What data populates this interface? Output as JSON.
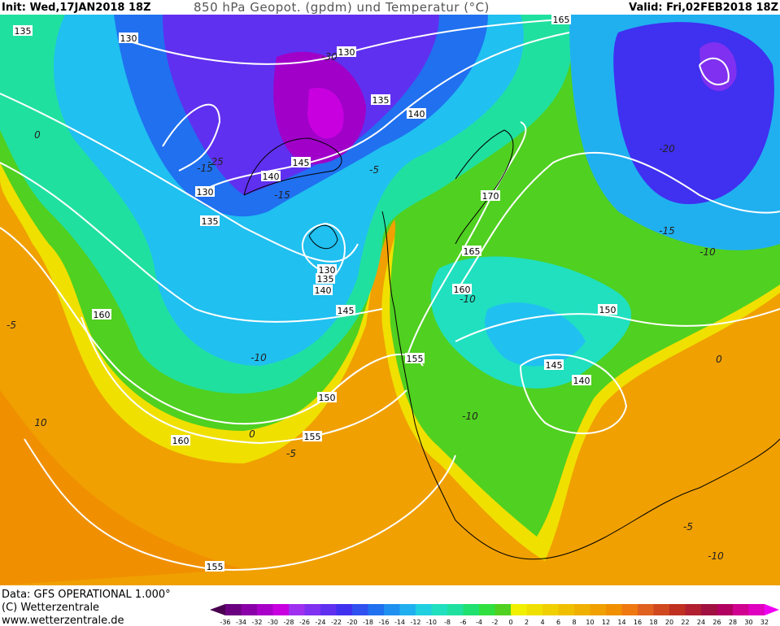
{
  "header": {
    "init": "Init: Wed,17JAN2018 18Z",
    "title": "850 hPa Geopot. (gpdm) und Temperatur (°C)",
    "valid": "Valid: Fri,02FEB2018 18Z"
  },
  "map": {
    "geopotential_labels": [
      "135",
      "130",
      "130",
      "165",
      "135",
      "140",
      "145",
      "140",
      "130",
      "135",
      "170",
      "165",
      "130",
      "135",
      "140",
      "160",
      "145",
      "160",
      "150",
      "155",
      "145",
      "140",
      "150",
      "155",
      "160",
      "155"
    ],
    "temperature_labels": [
      "-30",
      "-25",
      "-15",
      "-15",
      "-5",
      "-10",
      "-10",
      "-20",
      "-15",
      "-10",
      "0",
      "-5",
      "10",
      "0",
      "-5",
      "0",
      "-10",
      "-5",
      "-10"
    ]
  },
  "footer": {
    "lines": [
      "Data: GFS OPERATIONAL 1.000°",
      "(C) Wetterzentrale",
      "www.wetterzentrale.de"
    ]
  },
  "colorbar": {
    "levels": [
      -36,
      -34,
      -32,
      -30,
      -28,
      -26,
      -24,
      -22,
      -20,
      -18,
      -16,
      -14,
      -12,
      -10,
      -8,
      -6,
      -4,
      -2,
      0,
      2,
      4,
      6,
      8,
      10,
      12,
      14,
      16,
      18,
      20,
      22,
      24,
      26,
      28,
      30,
      32
    ],
    "colors": [
      "#4a0050",
      "#6a0080",
      "#8a00a8",
      "#a800c8",
      "#c800e0",
      "#a030f0",
      "#8030f0",
      "#6030f0",
      "#4030f0",
      "#3050f0",
      "#2070f0",
      "#2090f0",
      "#20b0f0",
      "#20d0e0",
      "#20e0c0",
      "#20e0a0",
      "#20e070",
      "#30e040",
      "#50d020",
      "#f0f000",
      "#f0e000",
      "#f0d000",
      "#f0c000",
      "#f0b000",
      "#f0a000",
      "#f09000",
      "#f07810",
      "#e06020",
      "#d04820",
      "#c03020",
      "#b02030",
      "#a01040",
      "#b00060",
      "#d00090",
      "#e000c0",
      "#f000f0"
    ]
  }
}
